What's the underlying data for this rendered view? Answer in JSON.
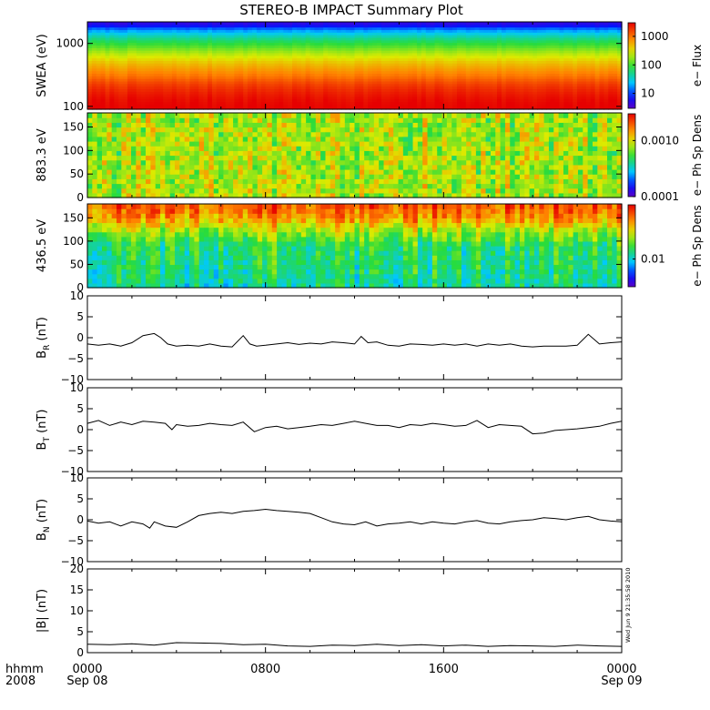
{
  "chart_data": [
    {
      "type": "heatmap",
      "title": "STEREO-B IMPACT Summary Plot",
      "ylabel": "SWEA (eV)",
      "yscale": "log",
      "ylim": [
        90,
        2200
      ],
      "yticks": [
        "1000",
        "100"
      ],
      "colorbar": {
        "label": "e− Flux",
        "scale": "log",
        "ticks": [
          "1000",
          "100",
          "10"
        ],
        "range": [
          3,
          3000
        ]
      },
      "bands": [
        {
          "e": 2000,
          "z": 5
        },
        {
          "e": 1700,
          "z": 15
        },
        {
          "e": 1300,
          "z": 40
        },
        {
          "e": 900,
          "z": 110
        },
        {
          "e": 600,
          "z": 300
        },
        {
          "e": 420,
          "z": 600
        },
        {
          "e": 300,
          "z": 1000
        },
        {
          "e": 230,
          "z": 1600
        },
        {
          "e": 170,
          "z": 2200
        },
        {
          "e": 120,
          "z": 2800
        },
        {
          "e": 95,
          "z": 3000
        }
      ]
    },
    {
      "type": "heatmap",
      "ylabel": "883.3 eV",
      "ylim": [
        0,
        180
      ],
      "yticks": [
        "150",
        "100",
        "50",
        "0"
      ],
      "colorbar": {
        "label": "e− Ph Sp Dens",
        "scale": "log",
        "ticks": [
          "0.0010",
          "0.0001"
        ],
        "range": [
          0.0001,
          0.003
        ]
      },
      "typical": 0.0008
    },
    {
      "type": "heatmap",
      "ylabel": "436.5 eV",
      "ylim": [
        0,
        180
      ],
      "yticks": [
        "150",
        "100",
        "50",
        "0"
      ],
      "colorbar": {
        "label": "e− Ph Sp Dens",
        "scale": "log",
        "ticks": [
          "0.01"
        ],
        "range": [
          0.004,
          0.06
        ]
      },
      "profile": [
        {
          "pitch": 180,
          "z": 0.045
        },
        {
          "pitch": 150,
          "z": 0.035
        },
        {
          "pitch": 120,
          "z": 0.02
        },
        {
          "pitch": 90,
          "z": 0.014
        },
        {
          "pitch": 45,
          "z": 0.013
        },
        {
          "pitch": 0,
          "z": 0.012
        }
      ]
    },
    {
      "type": "line",
      "ylabel": "Bℛ (nT)",
      "ylabel_main": "B",
      "ylabel_sub": "R",
      "ylabel_unit": "(nT)",
      "ylim": [
        -10,
        10
      ],
      "yticks": [
        "10",
        "5",
        "0",
        "−5",
        "−10"
      ],
      "x_hours": [
        0,
        0.5,
        1,
        1.5,
        2,
        2.5,
        3,
        3.3,
        3.6,
        4,
        4.5,
        5,
        5.5,
        6,
        6.5,
        7,
        7.3,
        7.6,
        8,
        8.5,
        9,
        9.5,
        10,
        10.5,
        11,
        11.5,
        12,
        12.3,
        12.6,
        13,
        13.5,
        14,
        14.5,
        15,
        15.5,
        16,
        16.5,
        17,
        17.5,
        18,
        18.5,
        19,
        19.5,
        20,
        20.5,
        21,
        21.5,
        22,
        22.5,
        23,
        23.5,
        24
      ],
      "values": [
        -1.5,
        -1.8,
        -1.5,
        -2,
        -1.2,
        0.5,
        1,
        0,
        -1.5,
        -2,
        -1.8,
        -2,
        -1.5,
        -2,
        -2.2,
        0.5,
        -1.5,
        -2,
        -1.8,
        -1.5,
        -1.2,
        -1.6,
        -1.3,
        -1.5,
        -1.0,
        -1.2,
        -1.5,
        0.3,
        -1.2,
        -1.0,
        -1.8,
        -2.0,
        -1.5,
        -1.6,
        -1.8,
        -1.5,
        -1.8,
        -1.5,
        -2.0,
        -1.5,
        -1.8,
        -1.5,
        -2.0,
        -2.2,
        -2.0,
        -2.0,
        -2.0,
        -1.8,
        0.8,
        -1.5,
        -1.2,
        -1.0
      ]
    },
    {
      "type": "line",
      "ylabel_main": "B",
      "ylabel_sub": "T",
      "ylabel_unit": "(nT)",
      "ylim": [
        -10,
        10
      ],
      "yticks": [
        "10",
        "5",
        "0",
        "−5",
        "−10"
      ],
      "x_hours": [
        0,
        0.5,
        1,
        1.5,
        2,
        2.5,
        3,
        3.5,
        3.8,
        4,
        4.5,
        5,
        5.5,
        6,
        6.5,
        7,
        7.5,
        8,
        8.5,
        9,
        9.5,
        10,
        10.5,
        11,
        11.5,
        12,
        12.5,
        13,
        13.5,
        14,
        14.5,
        15,
        15.5,
        16,
        16.5,
        17,
        17.5,
        18,
        18.5,
        19,
        19.5,
        20,
        20.5,
        21,
        21.5,
        22,
        22.5,
        23,
        23.5,
        24
      ],
      "values": [
        1.5,
        2.2,
        1.0,
        1.8,
        1.2,
        2.0,
        1.8,
        1.5,
        0,
        1.2,
        0.8,
        1.0,
        1.5,
        1.2,
        1.0,
        1.8,
        -0.5,
        0.5,
        0.8,
        0.2,
        0.5,
        0.8,
        1.2,
        1.0,
        1.5,
        2.0,
        1.5,
        1.0,
        1.0,
        0.5,
        1.2,
        1.0,
        1.5,
        1.2,
        0.8,
        1.0,
        2.2,
        0.5,
        1.2,
        1.0,
        0.8,
        -1.0,
        -0.8,
        -0.2,
        0.0,
        0.2,
        0.5,
        0.8,
        1.5,
        2.0
      ]
    },
    {
      "type": "line",
      "ylabel_main": "B",
      "ylabel_sub": "N",
      "ylabel_unit": "(nT)",
      "ylim": [
        -10,
        10
      ],
      "yticks": [
        "10",
        "5",
        "0",
        "−5",
        "−10"
      ],
      "x_hours": [
        0,
        0.5,
        1,
        1.5,
        2,
        2.5,
        2.8,
        3,
        3.5,
        4,
        4.5,
        5,
        5.5,
        6,
        6.5,
        7,
        7.5,
        8,
        8.5,
        9,
        9.5,
        10,
        10.5,
        11,
        11.5,
        12,
        12.5,
        13,
        13.5,
        14,
        14.5,
        15,
        15.5,
        16,
        16.5,
        17,
        17.5,
        18,
        18.5,
        19,
        19.5,
        20,
        20.5,
        21,
        21.5,
        22,
        22.5,
        23,
        23.5,
        24
      ],
      "values": [
        -0.3,
        -0.8,
        -0.5,
        -1.5,
        -0.5,
        -1.0,
        -2.0,
        -0.5,
        -1.5,
        -1.8,
        -0.5,
        1.0,
        1.5,
        1.8,
        1.5,
        2.0,
        2.2,
        2.5,
        2.2,
        2.0,
        1.8,
        1.5,
        0.5,
        -0.5,
        -1.0,
        -1.2,
        -0.5,
        -1.5,
        -1.0,
        -0.8,
        -0.5,
        -1.0,
        -0.5,
        -0.8,
        -1.0,
        -0.5,
        -0.2,
        -0.8,
        -1.0,
        -0.5,
        -0.2,
        0.0,
        0.5,
        0.3,
        0.0,
        0.5,
        0.8,
        0.0,
        -0.3,
        -0.5
      ]
    },
    {
      "type": "line",
      "ylabel": "|B| (nT)",
      "ylim": [
        0,
        20
      ],
      "yticks": [
        "20",
        "15",
        "10",
        "5",
        "0"
      ],
      "x_hours": [
        0,
        1,
        2,
        3,
        4,
        5,
        6,
        7,
        8,
        9,
        10,
        11,
        12,
        13,
        14,
        15,
        16,
        17,
        18,
        19,
        20,
        21,
        22,
        23,
        24
      ],
      "values": [
        2.0,
        1.9,
        2.1,
        1.8,
        2.4,
        2.3,
        2.2,
        1.9,
        2.0,
        1.6,
        1.5,
        1.8,
        1.7,
        2.0,
        1.7,
        1.9,
        1.6,
        1.8,
        1.5,
        1.7,
        1.6,
        1.5,
        1.8,
        1.6,
        1.5
      ]
    }
  ],
  "xaxis": {
    "corner_top": "hhmm",
    "corner_bottom": "2008",
    "ticks": [
      {
        "hour": 0,
        "time": "0000",
        "date": "Sep 08"
      },
      {
        "hour": 8,
        "time": "0800",
        "date": ""
      },
      {
        "hour": 16,
        "time": "1600",
        "date": ""
      },
      {
        "hour": 24,
        "time": "0000",
        "date": "Sep 09"
      }
    ]
  },
  "timestamp": "Wed Jun  9 21:35:58 2010",
  "colors": {
    "line": "#000000",
    "background": "#ffffff",
    "gap": "#ffffff"
  }
}
